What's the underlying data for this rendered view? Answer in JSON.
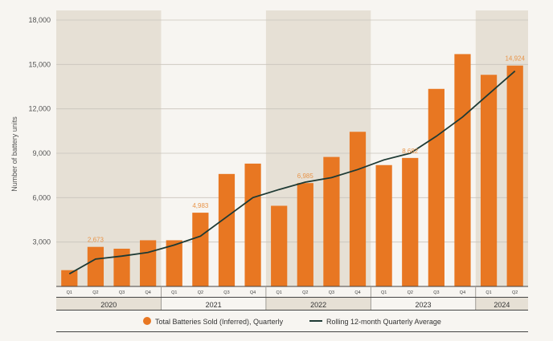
{
  "colors": {
    "bar": "#e87722",
    "line": "#1e3a34",
    "band": "#e6e0d5",
    "grid": "#c9c4bb",
    "axis": "#555555",
    "label": "#e8954a"
  },
  "chart_data": {
    "type": "bar",
    "ylabel": "Number of battery units",
    "ylim": [
      0,
      18000
    ],
    "yticks": [
      3000,
      6000,
      9000,
      12000,
      15000,
      18000
    ],
    "ytick_labels": [
      "3,000",
      "6,000",
      "9,000",
      "12,000",
      "15,000",
      "18,000"
    ],
    "categories": [
      "Q1",
      "Q2",
      "Q3",
      "Q4",
      "Q1",
      "Q2",
      "Q3",
      "Q4",
      "Q1",
      "Q2",
      "Q3",
      "Q4",
      "Q1",
      "Q2",
      "Q3",
      "Q4",
      "Q1",
      "Q2"
    ],
    "years": [
      {
        "label": "2020",
        "quarters": 4,
        "shaded": true
      },
      {
        "label": "2021",
        "quarters": 4,
        "shaded": false
      },
      {
        "label": "2022",
        "quarters": 4,
        "shaded": true
      },
      {
        "label": "2023",
        "quarters": 4,
        "shaded": false
      },
      {
        "label": "2024",
        "quarters": 2,
        "shaded": true
      }
    ],
    "series": [
      {
        "name": "Total Batteries Sold (Inferred), Quarterly",
        "type": "bar",
        "values": [
          1100,
          2673,
          2550,
          3120,
          3120,
          4983,
          7600,
          8300,
          5450,
          6985,
          8750,
          10450,
          8200,
          8682,
          13350,
          15700,
          14300,
          14924
        ]
      },
      {
        "name": "Rolling 12-month Quarterly Average",
        "type": "line",
        "values": [
          850,
          1850,
          2050,
          2300,
          2800,
          3400,
          4700,
          6000,
          6550,
          7050,
          7350,
          7900,
          8550,
          9000,
          10150,
          11450,
          13000,
          14550
        ]
      }
    ],
    "data_labels": [
      {
        "index": 1,
        "text": "2,673"
      },
      {
        "index": 5,
        "text": "4,983"
      },
      {
        "index": 9,
        "text": "6,985"
      },
      {
        "index": 13,
        "text": "8,682"
      },
      {
        "index": 17,
        "text": "14,924"
      }
    ],
    "legend": {
      "position": "bottom",
      "items": [
        {
          "label": "Total Batteries Sold (Inferred), Quarterly",
          "marker": "dot"
        },
        {
          "label": "Rolling 12-month Quarterly Average",
          "marker": "line"
        }
      ]
    },
    "grid": true
  }
}
